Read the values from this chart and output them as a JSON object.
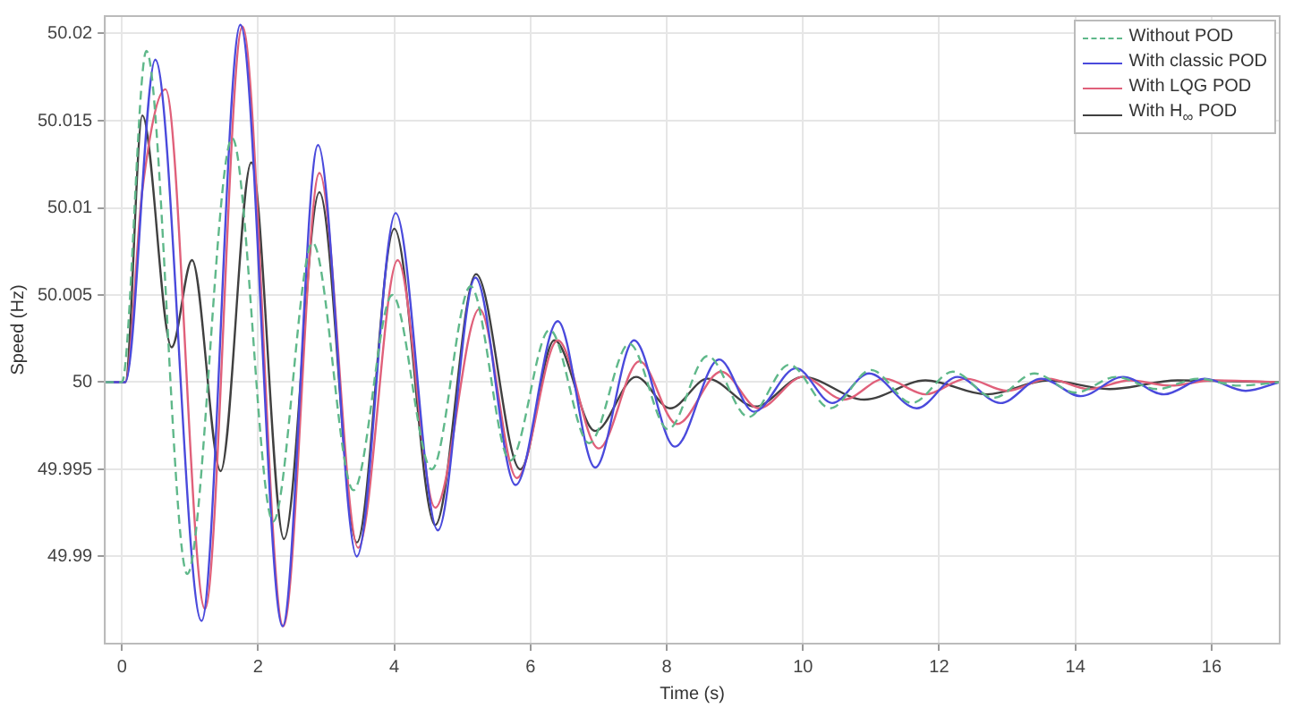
{
  "chart_data": {
    "type": "line",
    "xlabel": "Time (s)",
    "ylabel": "Speed (Hz)",
    "xlim": [
      -0.25,
      17
    ],
    "xticks": [
      0,
      2,
      4,
      6,
      8,
      10,
      12,
      14,
      16
    ],
    "ylim": [
      49.985,
      50.021
    ],
    "yticks": [
      49.99,
      49.995,
      50,
      50.005,
      50.01,
      50.015,
      50.02
    ],
    "grid": true,
    "legend": "top right",
    "marker": "none",
    "series": [
      {
        "name": "Without POD",
        "color": "#5fb88a",
        "line_style": "dashed",
        "x": [
          -0.25,
          0.0,
          0.36,
          0.96,
          1.62,
          2.22,
          2.8,
          3.4,
          3.97,
          4.55,
          5.12,
          5.7,
          6.28,
          6.86,
          7.45,
          8.02,
          8.6,
          9.2,
          9.8,
          10.4,
          11.0,
          11.6,
          12.2,
          12.8,
          13.4,
          14.0,
          14.6,
          15.2,
          15.8,
          16.4,
          17.0
        ],
        "values": [
          50,
          50,
          50.019,
          49.989,
          50.014,
          49.992,
          50.008,
          49.9938,
          50.005,
          49.995,
          50.0055,
          49.9955,
          50.003,
          49.9965,
          50.0022,
          49.9973,
          50.0015,
          49.998,
          50.001,
          49.9985,
          50.0007,
          49.9988,
          50.0006,
          49.9991,
          50.0005,
          49.9994,
          50.0003,
          49.9996,
          50.0002,
          49.9998,
          50
        ]
      },
      {
        "name": "With classic POD",
        "color": "#4a4adc",
        "line_style": "solid",
        "x": [
          -0.25,
          0.05,
          0.49,
          1.17,
          1.74,
          2.36,
          2.88,
          3.45,
          4.02,
          4.64,
          5.19,
          5.78,
          6.4,
          6.95,
          7.52,
          8.12,
          8.77,
          9.28,
          9.9,
          10.43,
          10.97,
          11.67,
          12.27,
          12.9,
          13.5,
          14.08,
          14.7,
          15.3,
          15.9,
          16.5,
          17.0
        ],
        "values": [
          50,
          50,
          50.0185,
          49.9863,
          50.0205,
          49.986,
          50.0136,
          49.99,
          50.0097,
          49.9915,
          50.006,
          49.9941,
          50.0035,
          49.9951,
          50.0024,
          49.9963,
          50.0013,
          49.9983,
          50.0008,
          49.9988,
          50.0005,
          49.9985,
          50.0003,
          49.9988,
          50.0002,
          49.9992,
          50.0003,
          49.9993,
          50.0002,
          49.9995,
          50
        ]
      },
      {
        "name": "With LQG POD",
        "color": "#e0607a",
        "line_style": "solid",
        "x": [
          -0.25,
          0.05,
          0.3,
          0.64,
          1.22,
          1.77,
          2.37,
          2.9,
          3.47,
          4.05,
          4.6,
          5.25,
          5.8,
          6.4,
          7.0,
          7.6,
          8.15,
          8.8,
          9.35,
          10.0,
          10.6,
          11.2,
          11.8,
          12.4,
          13.0,
          13.6,
          14.2,
          14.8,
          15.4,
          16.0,
          17.0
        ],
        "values": [
          50,
          50,
          50.011,
          50.0168,
          49.987,
          50.0204,
          49.986,
          50.012,
          49.9905,
          50.007,
          49.9928,
          50.0042,
          49.9945,
          50.0024,
          49.9962,
          50.0012,
          49.9976,
          50.0006,
          49.9985,
          50.0003,
          49.999,
          50.0002,
          49.9993,
          50.0002,
          49.9995,
          50.0002,
          49.9996,
          50.0001,
          49.9998,
          50.0001,
          50
        ]
      },
      {
        "name": "With H$_{∞}$ POD",
        "color": "#404040",
        "line_style": "solid",
        "x": [
          -0.25,
          0.05,
          0.3,
          0.73,
          1.03,
          1.45,
          1.9,
          2.38,
          2.9,
          3.45,
          4.0,
          4.6,
          5.2,
          5.85,
          6.35,
          6.95,
          7.55,
          8.05,
          8.6,
          9.3,
          10.0,
          10.9,
          11.8,
          12.7,
          13.6,
          14.5,
          15.5,
          17.0
        ],
        "values": [
          50,
          50,
          50.0153,
          50.002,
          50.007,
          49.9949,
          50.0126,
          49.991,
          50.0109,
          49.9908,
          50.0088,
          49.9918,
          50.0062,
          49.995,
          50.0024,
          49.9972,
          50.0003,
          49.9985,
          50.0002,
          49.9986,
          50.0003,
          49.999,
          50.0001,
          49.9993,
          50.0001,
          49.9996,
          50.0001,
          50
        ]
      }
    ]
  }
}
